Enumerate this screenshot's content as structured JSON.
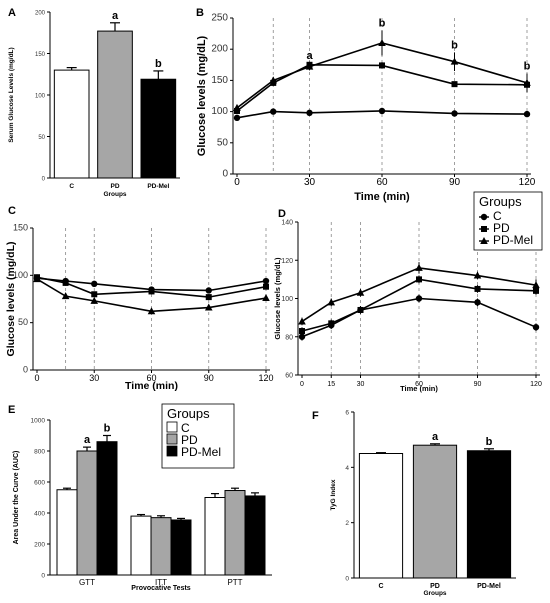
{
  "chart_data": [
    {
      "panel": "A",
      "type": "bar",
      "categories": [
        "C",
        "PD",
        "PD-Mel"
      ],
      "values": [
        130,
        177,
        119
      ],
      "errors": [
        3,
        10,
        10
      ],
      "sig": [
        "",
        "a",
        "b"
      ],
      "xlabel": "Groups",
      "ylabel": "Serum Glucose Levels (mg/dL)",
      "ylim": [
        0,
        200
      ],
      "yticks": [
        0,
        50,
        100,
        150,
        200
      ],
      "bar_colors": [
        "#ffffff",
        "#a6a6a6",
        "#000000"
      ]
    },
    {
      "panel": "B",
      "type": "line",
      "x": [
        0,
        15,
        30,
        60,
        90,
        120
      ],
      "series": [
        {
          "name": "C",
          "marker": "circle",
          "values": [
            90,
            100,
            98,
            101,
            97,
            96
          ],
          "errors": [
            3,
            3,
            3,
            3,
            3,
            3
          ]
        },
        {
          "name": "PD",
          "marker": "square",
          "values": [
            101,
            146,
            175,
            174,
            144,
            143
          ],
          "errors": [
            4,
            5,
            5,
            5,
            3,
            3
          ]
        },
        {
          "name": "PD-Mel",
          "marker": "triangle",
          "values": [
            106,
            150,
            172,
            210,
            180,
            146
          ],
          "errors": [
            4,
            5,
            6,
            20,
            15,
            15
          ]
        }
      ],
      "sig": [
        {
          "x": 30,
          "label": "a"
        },
        {
          "x": 60,
          "label": "b"
        },
        {
          "x": 90,
          "label": "b"
        },
        {
          "x": 120,
          "label": "b"
        }
      ],
      "xlabel": "Time (min)",
      "ylabel": "Glucose levels (mg/dL)",
      "xlim": [
        0,
        120
      ],
      "ylim": [
        0,
        250
      ],
      "xticks": [
        0,
        30,
        60,
        90,
        120
      ],
      "yticks": [
        0,
        50,
        100,
        150,
        200,
        250
      ],
      "vlines": [
        15,
        30,
        60,
        90,
        120
      ],
      "grid": false
    },
    {
      "panel": "C",
      "type": "line",
      "x": [
        0,
        15,
        30,
        60,
        90,
        120
      ],
      "series": [
        {
          "name": "C",
          "marker": "circle",
          "values": [
            97,
            94,
            91,
            85,
            84,
            94
          ],
          "errors": [
            3,
            3,
            3,
            3,
            3,
            3
          ]
        },
        {
          "name": "PD",
          "marker": "square",
          "values": [
            98,
            92,
            80,
            83,
            77,
            88
          ],
          "errors": [
            3,
            3,
            3,
            3,
            3,
            3
          ]
        },
        {
          "name": "PD-Mel",
          "marker": "triangle",
          "values": [
            96,
            78,
            73,
            62,
            66,
            76
          ],
          "errors": [
            3,
            3,
            3,
            3,
            3,
            3
          ]
        }
      ],
      "xlabel": "Time (min)",
      "ylabel": "Glucose levels (mg/dL)",
      "xlim": [
        0,
        120
      ],
      "ylim": [
        0,
        150
      ],
      "xticks": [
        0,
        30,
        60,
        90,
        120
      ],
      "yticks": [
        0,
        50,
        100,
        150
      ],
      "vlines": [
        15,
        30,
        60,
        90,
        120
      ],
      "grid": false
    },
    {
      "panel": "D",
      "type": "line",
      "x": [
        0,
        15,
        30,
        60,
        90,
        120
      ],
      "series": [
        {
          "name": "C",
          "marker": "circle",
          "values": [
            80,
            86,
            94,
            100,
            98,
            85
          ],
          "errors": [
            2,
            2,
            2,
            2,
            2,
            2
          ]
        },
        {
          "name": "PD",
          "marker": "square",
          "values": [
            83,
            87,
            94,
            110,
            105,
            104
          ],
          "errors": [
            2,
            2,
            2,
            2,
            2,
            2
          ]
        },
        {
          "name": "PD-Mel",
          "marker": "triangle",
          "values": [
            88,
            98,
            103,
            116,
            112,
            107
          ],
          "errors": [
            2,
            2,
            2,
            3,
            2,
            3
          ]
        }
      ],
      "xlabel": "Time (min)",
      "ylabel": "Glucose levels (mg/dL)",
      "xlim": [
        0,
        120
      ],
      "ylim": [
        60,
        140
      ],
      "xticks": [
        0,
        15,
        30,
        60,
        90,
        120
      ],
      "yticks": [
        60,
        80,
        100,
        120,
        140
      ],
      "vlines": [
        15,
        30,
        60,
        90,
        120
      ],
      "legend_title": "Groups",
      "legend_placement": "top-right",
      "grid": false
    },
    {
      "panel": "E",
      "type": "bar",
      "categories": [
        "GTT",
        "ITT",
        "PTT"
      ],
      "series": [
        {
          "name": "C",
          "values": [
            550,
            380,
            500
          ],
          "errors": [
            10,
            10,
            25
          ]
        },
        {
          "name": "PD",
          "values": [
            800,
            370,
            545
          ],
          "errors": [
            25,
            12,
            15
          ]
        },
        {
          "name": "PD-Mel",
          "values": [
            860,
            355,
            510
          ],
          "errors": [
            40,
            10,
            20
          ]
        }
      ],
      "sig": [
        {
          "category": "GTT",
          "series": "PD",
          "label": "a"
        },
        {
          "category": "GTT",
          "series": "PD-Mel",
          "label": "b"
        }
      ],
      "xlabel": "Provocative Tests",
      "ylabel": "Area Under the Curve (AUC)",
      "ylim": [
        0,
        1000
      ],
      "yticks": [
        0,
        200,
        400,
        600,
        800,
        1000
      ],
      "legend_title": "Groups",
      "legend_placement": "top-center",
      "bar_colors": [
        "#ffffff",
        "#a6a6a6",
        "#000000"
      ]
    },
    {
      "panel": "F",
      "type": "bar",
      "categories": [
        "C",
        "PD",
        "PD-Mel"
      ],
      "values": [
        4.5,
        4.8,
        4.6
      ],
      "errors": [
        0.03,
        0.05,
        0.07
      ],
      "sig": [
        "",
        "a",
        "b"
      ],
      "xlabel": "Groups",
      "ylabel": "TyG Index",
      "ylim": [
        0,
        6
      ],
      "yticks": [
        0,
        2,
        4,
        6
      ],
      "bar_colors": [
        "#ffffff",
        "#a6a6a6",
        "#000000"
      ]
    }
  ]
}
